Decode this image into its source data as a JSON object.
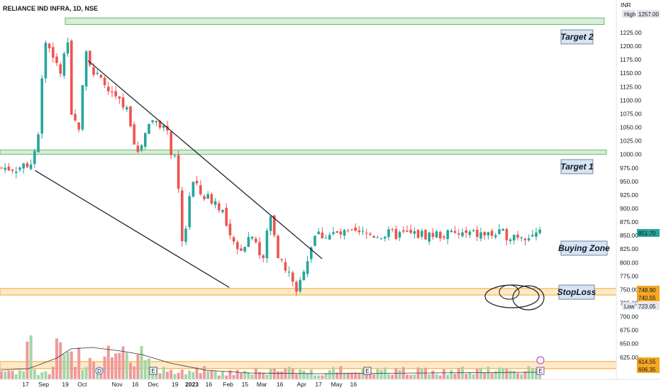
{
  "chart_data": {
    "type": "candlestick",
    "title": "RELIANCE IND INFRA, 1D, NSE",
    "currency": "INR",
    "y_ticks": [
      1225,
      1200,
      1175,
      1150,
      1125,
      1100,
      1075,
      1050,
      1025,
      1000,
      975,
      950,
      925,
      900,
      875,
      850,
      825,
      800,
      775,
      750,
      725,
      700,
      675,
      650,
      625
    ],
    "y_tick_labels": [
      "1225.00",
      "1200.00",
      "1175.00",
      "1150.00",
      "1125.00",
      "1100.00",
      "1075.00",
      "1050.00",
      "1025.00",
      "1000.00",
      "975.00",
      "950.00",
      "925.00",
      "900.00",
      "875.00",
      "850.00",
      "825.00",
      "800.00",
      "775.00",
      "750.00",
      "725.00",
      "700.00",
      "675.00",
      "650.00",
      "625.00"
    ],
    "x_ticks": [
      {
        "label": "17",
        "date": "2022-08-17"
      },
      {
        "label": "Sep",
        "date": "2022-09-01"
      },
      {
        "label": "19",
        "date": "2022-09-19"
      },
      {
        "label": "Oct",
        "date": "2022-10-03"
      },
      {
        "label": "Nov",
        "date": "2022-11-01"
      },
      {
        "label": "16",
        "date": "2022-11-16"
      },
      {
        "label": "Dec",
        "date": "2022-12-01"
      },
      {
        "label": "19",
        "date": "2022-12-19"
      },
      {
        "label": "2023",
        "date": "2023-01-02"
      },
      {
        "label": "16",
        "date": "2023-01-16"
      },
      {
        "label": "Feb",
        "date": "2023-02-01"
      },
      {
        "label": "15",
        "date": "2023-02-15"
      },
      {
        "label": "Mar",
        "date": "2023-03-01"
      },
      {
        "label": "16",
        "date": "2023-03-16"
      },
      {
        "label": "Apr",
        "date": "2023-04-03"
      },
      {
        "label": "17",
        "date": "2023-04-17"
      },
      {
        "label": "May",
        "date": "2023-05-02"
      },
      {
        "label": "16",
        "date": "2023-05-16"
      }
    ],
    "price_path": [
      {
        "date": "2022-08-10",
        "close": 975
      },
      {
        "date": "2022-08-22",
        "close": 985
      },
      {
        "date": "2022-08-29",
        "close": 1060
      },
      {
        "date": "2022-08-31",
        "close": 1160
      },
      {
        "date": "2022-09-02",
        "close": 1210
      },
      {
        "date": "2022-09-08",
        "close": 1190
      },
      {
        "date": "2022-09-14",
        "close": 1145
      },
      {
        "date": "2022-09-21",
        "close": 1200
      },
      {
        "date": "2022-09-23",
        "close": 1070
      },
      {
        "date": "2022-09-30",
        "close": 1050
      },
      {
        "date": "2022-10-05",
        "close": 1180
      },
      {
        "date": "2022-10-07",
        "close": 1200
      },
      {
        "date": "2022-10-12",
        "close": 1150
      },
      {
        "date": "2022-10-20",
        "close": 1130
      },
      {
        "date": "2022-11-01",
        "close": 1100
      },
      {
        "date": "2022-11-10",
        "close": 1080
      },
      {
        "date": "2022-11-18",
        "close": 1000
      },
      {
        "date": "2022-11-28",
        "close": 1060
      },
      {
        "date": "2022-12-05",
        "close": 1065
      },
      {
        "date": "2022-12-12",
        "close": 1040
      },
      {
        "date": "2022-12-16",
        "close": 1005
      },
      {
        "date": "2022-12-20",
        "close": 980
      },
      {
        "date": "2022-12-26",
        "close": 805
      },
      {
        "date": "2022-12-29",
        "close": 900
      },
      {
        "date": "2023-01-02",
        "close": 950
      },
      {
        "date": "2023-01-10",
        "close": 925
      },
      {
        "date": "2023-01-20",
        "close": 915
      },
      {
        "date": "2023-01-27",
        "close": 900
      },
      {
        "date": "2023-02-01",
        "close": 850
      },
      {
        "date": "2023-02-08",
        "close": 820
      },
      {
        "date": "2023-02-16",
        "close": 840
      },
      {
        "date": "2023-02-22",
        "close": 860
      },
      {
        "date": "2023-02-27",
        "close": 815
      },
      {
        "date": "2023-03-02",
        "close": 800
      },
      {
        "date": "2023-03-06",
        "close": 870
      },
      {
        "date": "2023-03-09",
        "close": 890
      },
      {
        "date": "2023-03-14",
        "close": 820
      },
      {
        "date": "2023-03-20",
        "close": 785
      },
      {
        "date": "2023-03-27",
        "close": 770
      },
      {
        "date": "2023-03-29",
        "close": 740
      },
      {
        "date": "2023-03-31",
        "close": 735
      },
      {
        "date": "2023-04-03",
        "close": 780
      },
      {
        "date": "2023-04-06",
        "close": 800
      },
      {
        "date": "2023-04-10",
        "close": 818
      },
      {
        "date": "2023-04-12",
        "close": 851.7
      }
    ],
    "highlighted_prices": [
      {
        "label": "High",
        "value": "1257.00",
        "type": "high"
      },
      {
        "label": "",
        "value": "851.70",
        "type": "last"
      },
      {
        "label": "",
        "value": "748.90",
        "type": "zone"
      },
      {
        "label": "",
        "value": "740.55",
        "type": "zone"
      },
      {
        "label": "Low",
        "value": "723.05",
        "type": "low"
      },
      {
        "label": "",
        "value": "614.55",
        "type": "zone"
      },
      {
        "label": "",
        "value": "606.35",
        "type": "zone"
      }
    ],
    "zones": [
      {
        "from": 1252,
        "to": 1240,
        "color": "#c8e6c9",
        "border": "#66bb6a"
      },
      {
        "from": 1008,
        "to": 1000,
        "color": "#c8e6c9",
        "border": "#66bb6a"
      },
      {
        "from": 752,
        "to": 740,
        "color": "#ffe0b2",
        "border": "#f5a623"
      },
      {
        "from": 617,
        "to": 604,
        "color": "#ffe0b2",
        "border": "#f5a623"
      }
    ],
    "trendlines": [
      {
        "from": {
          "date": "2022-10-08",
          "price": 1173
        },
        "to": {
          "date": "2023-04-20",
          "price": 807
        }
      },
      {
        "from": {
          "date": "2022-08-25",
          "price": 970
        },
        "to": {
          "date": "2023-02-02",
          "price": 754
        }
      }
    ],
    "annotations": [
      {
        "text": "Target 2"
      },
      {
        "text": "Target 1"
      },
      {
        "text": "Buying Zone"
      },
      {
        "text": "StopLoss"
      }
    ],
    "event_markers": [
      "D",
      "E",
      "E",
      "E"
    ],
    "colors": {
      "up": "#26a69a",
      "down": "#ef5350",
      "volume_up": "#a5d6a7",
      "volume_down": "#ef9a9a",
      "zone_green": "#c8e6c9",
      "zone_orange": "#f5a623"
    }
  }
}
